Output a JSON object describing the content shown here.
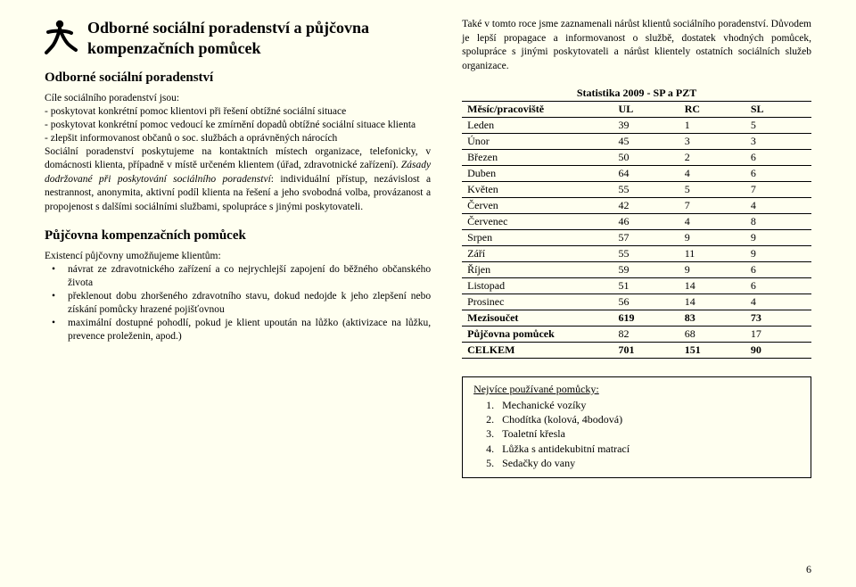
{
  "title": "Odborné sociální poradenství a půjčovna kompenzačních pomůcek",
  "subtitle1": "Odborné sociální poradenství",
  "goals_intro": "Cíle sociálního poradenství jsou:",
  "goals": [
    "poskytovat konkrétní pomoc klientovi při řešení obtížné sociální situace",
    "poskytovat konkrétní pomoc vedoucí ke zmírnění dopadů obtížné sociální situace klienta",
    "zlepšit informovanost občanů o soc. službách a oprávněných nárocích"
  ],
  "para1a": "Sociální poradenství poskytujeme na kontaktních místech organizace, telefonicky, v domácnosti klienta, případně v místě určeném klientem (úřad, zdravotnické zařízení). ",
  "para1b": "Zásady dodržované při poskytování sociálního poradenství",
  "para1c": ": individuální přístup, nezávislost a nestrannost, anonymita, aktivní podíl klienta na řešení a jeho svobodná volba, provázanost a propojenost s dalšími sociálními službami, spolupráce s jinými poskytovateli.",
  "subtitle2": "Půjčovna kompenzačních pomůcek",
  "pujcovna_intro": "Existencí půjčovny umožňujeme klientům:",
  "pujcovna_items": [
    "návrat ze zdravotnického zařízení a co nejrychlejší zapojení do běžného občanského života",
    "překlenout dobu zhoršeného zdravotního stavu, dokud nedojde k jeho zlepšení nebo získání pomůcky hrazené pojišťovnou",
    "maximální dostupné pohodlí, pokud je klient upoután na lůžko (aktivizace na lůžku, prevence proleženin, apod.)"
  ],
  "right_para": "Také v tomto roce jsme zaznamenali nárůst klientů sociálního poradenství. Důvodem je lepší propagace a informovanost o službě, dostatek vhodných pomůcek, spolupráce s jinými poskytovateli a nárůst klientely ostatních sociálních služeb organizace.",
  "table": {
    "caption": "Statistika 2009 - SP a PZT",
    "head": [
      "Měsíc/pracoviště",
      "UL",
      "RC",
      "SL"
    ],
    "rows": [
      [
        "Leden",
        "39",
        "1",
        "5"
      ],
      [
        "Únor",
        "45",
        "3",
        "3"
      ],
      [
        "Březen",
        "50",
        "2",
        "6"
      ],
      [
        "Duben",
        "64",
        "4",
        "6"
      ],
      [
        "Květen",
        "55",
        "5",
        "7"
      ],
      [
        "Červen",
        "42",
        "7",
        "4"
      ],
      [
        "Červenec",
        "46",
        "4",
        "8"
      ],
      [
        "Srpen",
        "57",
        "9",
        "9"
      ],
      [
        "Září",
        "55",
        "11",
        "9"
      ],
      [
        "Říjen",
        "59",
        "9",
        "6"
      ],
      [
        "Listopad",
        "51",
        "14",
        "6"
      ],
      [
        "Prosinec",
        "56",
        "14",
        "4"
      ]
    ],
    "subtotal": [
      "Mezisoučet",
      "619",
      "83",
      "73"
    ],
    "lending": [
      "Půjčovna pomůcek",
      "82",
      "68",
      "17"
    ],
    "total": [
      "CELKEM",
      "701",
      "151",
      "90"
    ]
  },
  "box_title": "Nejvíce používané pomůcky:",
  "box_items": [
    "Mechanické vozíky",
    "Chodítka (kolová, 4bodová)",
    "Toaletní křesla",
    "Lůžka s antidekubitní matrací",
    "Sedačky do vany"
  ],
  "page_number": "6"
}
